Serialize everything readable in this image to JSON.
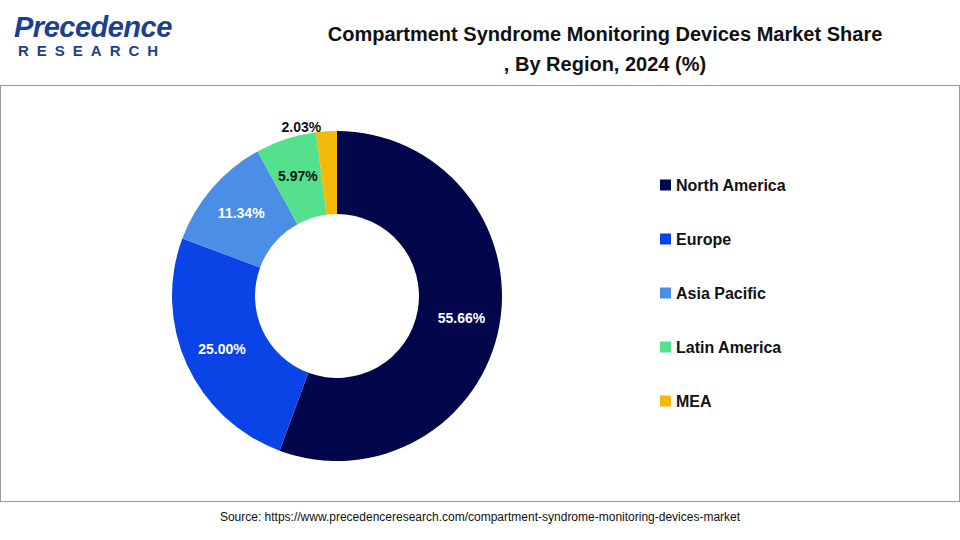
{
  "chart_data": {
    "type": "pie",
    "title": "Compartment Syndrome Monitoring Devices Market Share, By Region, 2024 (%)",
    "categories": [
      "North America",
      "Europe",
      "Asia Pacific",
      "Latin America",
      "MEA"
    ],
    "values": [
      55.66,
      25.0,
      11.34,
      5.97,
      2.03
    ],
    "value_labels": [
      "55.66%",
      "25.00%",
      "11.34%",
      "5.97%",
      "2.03%"
    ],
    "colors": [
      "#01074a",
      "#0a44e6",
      "#4a8ee6",
      "#55e08e",
      "#f5b90a"
    ],
    "data_labels": true,
    "legend": "right"
  },
  "logo": {
    "line1": "Precedence",
    "line2": "RESEARCH"
  },
  "source": "Source: https://www.precedenceresearch.com/compartment-syndrome-monitoring-devices-market"
}
